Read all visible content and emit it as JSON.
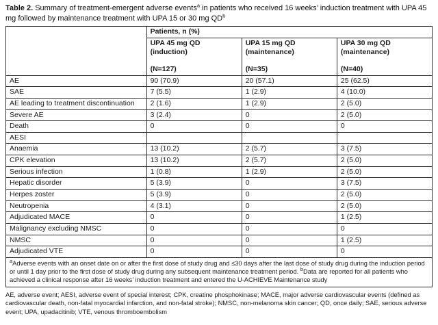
{
  "caption": {
    "label": "Table 2.",
    "text_before_sup_a": " Summary of treatment-emergent adverse events",
    "sup_a": "a",
    "text_after_sup_a": " in patients who received 16 weeks’ induction treatment with UPA 45 mg followed by maintenance treatment with UPA 15 or 30 mg QD",
    "sup_b": "b"
  },
  "table": {
    "span_header": "Patients, n (%)",
    "columns": [
      {
        "line1": "UPA 45 mg QD",
        "line2": "(induction)",
        "line3": "(N=127)"
      },
      {
        "line1": "UPA 15 mg QD",
        "line2": "(maintenance)",
        "line3": "(N=35)"
      },
      {
        "line1": "UPA 30 mg QD",
        "line2": "(maintenance)",
        "line3": "(N=40)"
      }
    ],
    "rows": [
      {
        "label": "AE",
        "indent": false,
        "values": [
          "90 (70.9)",
          "20 (57.1)",
          "25 (62.5)"
        ]
      },
      {
        "label": "SAE",
        "indent": false,
        "values": [
          "7 (5.5)",
          "1 (2.9)",
          "4 (10.0)"
        ]
      },
      {
        "label": "AE leading to treatment discontinuation",
        "indent": false,
        "values": [
          "2 (1.6)",
          "1 (2.9)",
          "2 (5.0)"
        ]
      },
      {
        "label": "Severe AE",
        "indent": false,
        "values": [
          "3 (2.4)",
          "0",
          "2 (5.0)"
        ]
      },
      {
        "label": "Death",
        "indent": false,
        "values": [
          "0",
          "0",
          "0"
        ]
      },
      {
        "label": "AESI",
        "indent": false,
        "values": [
          "",
          "",
          ""
        ]
      },
      {
        "label": "Anaemia",
        "indent": true,
        "values": [
          "13 (10.2)",
          "2 (5.7)",
          "3 (7.5)"
        ]
      },
      {
        "label": "CPK elevation",
        "indent": true,
        "values": [
          "13 (10.2)",
          "2 (5.7)",
          "2 (5.0)"
        ]
      },
      {
        "label": "Serious infection",
        "indent": true,
        "values": [
          "1 (0.8)",
          "1 (2.9)",
          "2 (5.0)"
        ]
      },
      {
        "label": "Hepatic disorder",
        "indent": true,
        "values": [
          "5 (3.9)",
          "0",
          "3 (7.5)"
        ]
      },
      {
        "label": "Herpes zoster",
        "indent": true,
        "values": [
          "5 (3.9)",
          "0",
          "2 (5.0)"
        ]
      },
      {
        "label": "Neutropenia",
        "indent": true,
        "values": [
          "4 (3.1)",
          "0",
          "2 (5.0)"
        ]
      },
      {
        "label": "Adjudicated MACE",
        "indent": false,
        "values": [
          "0",
          "0",
          "1 (2.5)"
        ]
      },
      {
        "label": "Malignancy excluding NMSC",
        "indent": false,
        "values": [
          "0",
          "0",
          "0"
        ]
      },
      {
        "label": "NMSC",
        "indent": false,
        "values": [
          "0",
          "0",
          "1 (2.5)"
        ]
      },
      {
        "label": "Adjudicated VTE",
        "indent": false,
        "values": [
          "0",
          "0",
          "0"
        ]
      }
    ],
    "footnote": {
      "sup_a": "a",
      "text_a": "Adverse events with an onset date on or after the first dose of study drug and ≤30 days after the last dose of study drug during the induction period or until 1 day prior to the first dose of study drug during any subsequent maintenance treatment period. ",
      "sup_b": "b",
      "text_b": "Data are reported for all patients who achieved a clinical response after 16 weeks’ induction treatment and entered the U-ACHIEVE Maintenance study"
    }
  },
  "abbreviations": "AE, adverse event; AESI, adverse event of special interest; CPK, creatine phosphokinase; MACE, major adverse cardiovascular events (defined as cardiovascular death, non-fatal myocardial infarction, and non-fatal stroke); NMSC, non-melanoma skin cancer; QD, once daily; SAE, serious adverse event; UPA, upadacitinib; VTE, venous thromboembolism"
}
